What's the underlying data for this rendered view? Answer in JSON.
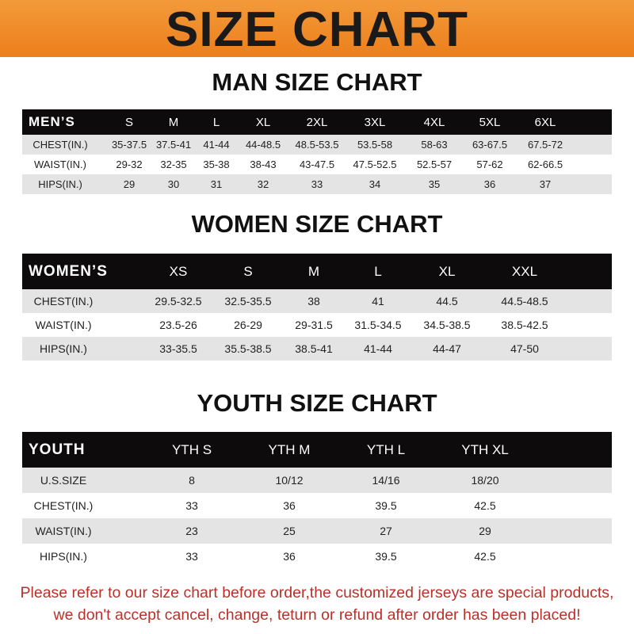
{
  "banner": {
    "title": "SIZE CHART",
    "color": "#ee8526"
  },
  "men": {
    "title": "MAN SIZE CHART",
    "header": [
      "MEN’S",
      "S",
      "M",
      "L",
      "XL",
      "2XL",
      "3XL",
      "4XL",
      "5XL",
      "6XL"
    ],
    "rows": [
      [
        "CHEST(IN.)",
        "35-37.5",
        "37.5-41",
        "41-44",
        "44-48.5",
        "48.5-53.5",
        "53.5-58",
        "58-63",
        "63-67.5",
        "67.5-72"
      ],
      [
        "WAIST(IN.)",
        "29-32",
        "32-35",
        "35-38",
        "38-43",
        "43-47.5",
        "47.5-52.5",
        "52.5-57",
        "57-62",
        "62-66.5"
      ],
      [
        "HIPS(IN.)",
        "29",
        "30",
        "31",
        "32",
        "33",
        "34",
        "35",
        "36",
        "37"
      ]
    ]
  },
  "women": {
    "title": "WOMEN SIZE CHART",
    "header": [
      "WOMEN’S",
      "XS",
      "S",
      "M",
      "L",
      "XL",
      "XXL"
    ],
    "rows": [
      [
        "CHEST(IN.)",
        "29.5-32.5",
        "32.5-35.5",
        "38",
        "41",
        "44.5",
        "44.5-48.5"
      ],
      [
        "WAIST(IN.)",
        "23.5-26",
        "26-29",
        "29-31.5",
        "31.5-34.5",
        "34.5-38.5",
        "38.5-42.5"
      ],
      [
        "HIPS(IN.)",
        "33-35.5",
        "35.5-38.5",
        "38.5-41",
        "41-44",
        "44-47",
        "47-50"
      ]
    ]
  },
  "youth": {
    "title": "YOUTH SIZE CHART",
    "header": [
      "YOUTH",
      "YTH S",
      "YTH M",
      "YTH L",
      "YTH XL"
    ],
    "rows": [
      [
        "U.S.SIZE",
        "8",
        "10/12",
        "14/16",
        "18/20"
      ],
      [
        "CHEST(IN.)",
        "33",
        "36",
        "39.5",
        "42.5"
      ],
      [
        "WAIST(IN.)",
        "23",
        "25",
        "27",
        "29"
      ],
      [
        "HIPS(IN.)",
        "33",
        "36",
        "39.5",
        "42.5"
      ]
    ]
  },
  "footer": {
    "line1": "Please refer to our size chart before order,the customized jerseys are special products,",
    "line2": "we don't accept cancel, change, teturn or refund after order has been placed!"
  }
}
